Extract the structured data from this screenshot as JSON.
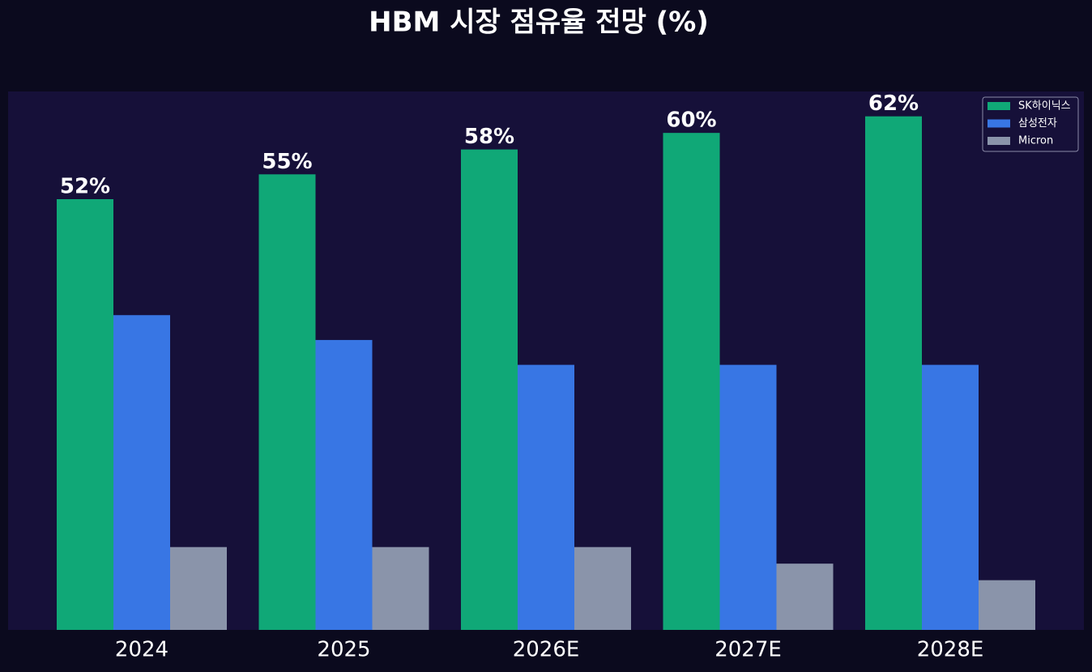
{
  "chart_data": {
    "type": "bar",
    "title": "HBM 시장 점유율 전망 (%)",
    "categories": [
      "2024",
      "2025",
      "2026E",
      "2027E",
      "2028E"
    ],
    "series": [
      {
        "name": "SK하이닉스",
        "color": "#10a877",
        "values": [
          52,
          55,
          58,
          60,
          62
        ],
        "value_labels": [
          "52%",
          "55%",
          "58%",
          "60%",
          "62%"
        ]
      },
      {
        "name": "삼성전자",
        "color": "#3876e4",
        "values": [
          38,
          35,
          32,
          32,
          32
        ]
      },
      {
        "name": "Micron",
        "color": "#8a94aa",
        "values": [
          10,
          10,
          10,
          8,
          6
        ]
      }
    ],
    "ylim": [
      0,
      65
    ],
    "legend": "upper right"
  }
}
